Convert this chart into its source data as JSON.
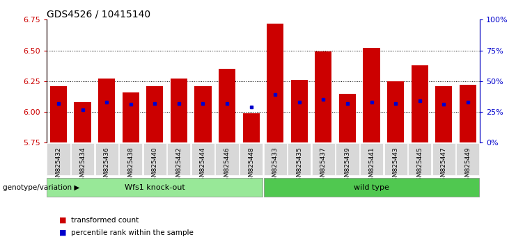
{
  "title": "GDS4526 / 10415140",
  "samples": [
    "GSM825432",
    "GSM825434",
    "GSM825436",
    "GSM825438",
    "GSM825440",
    "GSM825442",
    "GSM825444",
    "GSM825446",
    "GSM825448",
    "GSM825433",
    "GSM825435",
    "GSM825437",
    "GSM825439",
    "GSM825441",
    "GSM825443",
    "GSM825445",
    "GSM825447",
    "GSM825449"
  ],
  "red_values": [
    6.21,
    6.08,
    6.27,
    6.16,
    6.21,
    6.27,
    6.21,
    6.35,
    5.99,
    6.72,
    6.26,
    6.49,
    6.15,
    6.52,
    6.25,
    6.38,
    6.21,
    6.22
  ],
  "blue_values": [
    6.07,
    6.02,
    6.08,
    6.06,
    6.07,
    6.07,
    6.07,
    6.07,
    6.04,
    6.14,
    6.08,
    6.1,
    6.07,
    6.08,
    6.07,
    6.09,
    6.06,
    6.08
  ],
  "ylim_left": [
    5.75,
    6.75
  ],
  "ylim_right": [
    0,
    100
  ],
  "yticks_left": [
    5.75,
    6.0,
    6.25,
    6.5,
    6.75
  ],
  "yticks_right": [
    0,
    25,
    50,
    75,
    100
  ],
  "ytick_labels_right": [
    "0%",
    "25%",
    "50%",
    "75%",
    "100%"
  ],
  "group1_label": "Wfs1 knock-out",
  "group2_label": "wild type",
  "n_group1": 9,
  "n_group2": 9,
  "group1_color": "#98E898",
  "group2_color": "#50C850",
  "bar_color": "#CC0000",
  "blue_color": "#0000CC",
  "baseline": 5.75,
  "legend_red": "transformed count",
  "legend_blue": "percentile rank within the sample",
  "genotype_label": "genotype/variation",
  "title_fontsize": 10,
  "axis_color_left": "#CC0000",
  "axis_color_right": "#0000CC",
  "xtick_bg": "#D8D8D8"
}
